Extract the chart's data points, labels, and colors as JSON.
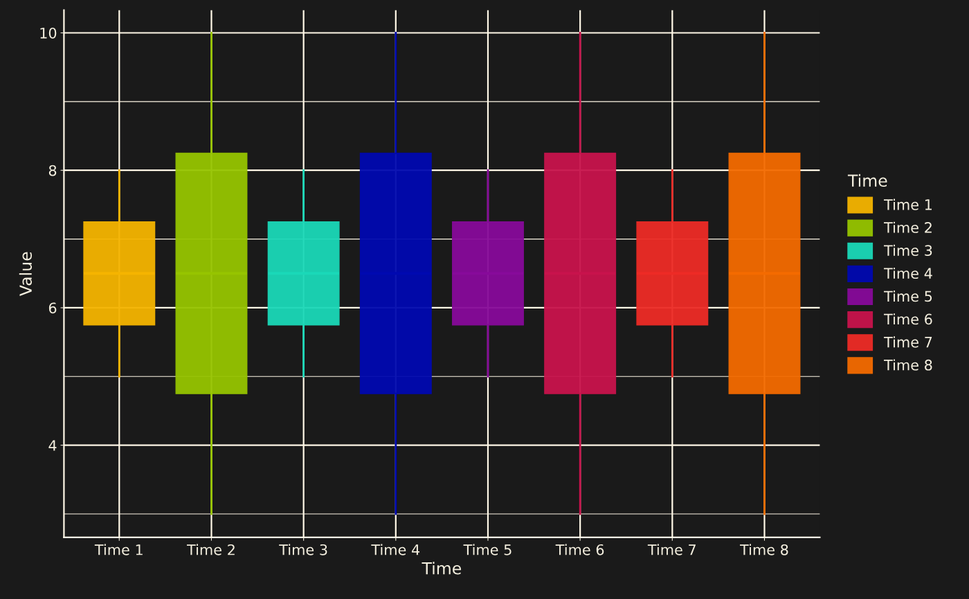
{
  "chart_data": {
    "type": "box",
    "xlabel": "Time",
    "ylabel": "Value",
    "legend_title": "Time",
    "legend": "right",
    "grid": true,
    "categories": [
      "Time 1",
      "Time 2",
      "Time 3",
      "Time 4",
      "Time 5",
      "Time 6",
      "Time 7",
      "Time 8"
    ],
    "series": [
      {
        "name": "Time 1",
        "color": "#f5b400",
        "x": [
          "Time 1"
        ],
        "boxes": [
          {
            "low": 5,
            "q1": 5.75,
            "median": 6.5,
            "q3": 7.25,
            "high": 8
          }
        ]
      },
      {
        "name": "Time 2",
        "color": "#96c400",
        "x": [
          "Time 2"
        ],
        "boxes": [
          {
            "low": 3,
            "q1": 4.75,
            "median": 6.5,
            "q3": 8.25,
            "high": 10
          }
        ]
      },
      {
        "name": "Time 3",
        "color": "#1ad8b8",
        "x": [
          "Time 3"
        ],
        "boxes": [
          {
            "low": 5,
            "q1": 5.75,
            "median": 6.5,
            "q3": 7.25,
            "high": 8
          }
        ]
      },
      {
        "name": "Time 4",
        "color": "#0009b0",
        "x": [
          "Time 4"
        ],
        "boxes": [
          {
            "low": 3,
            "q1": 4.75,
            "median": 6.5,
            "q3": 8.25,
            "high": 10
          }
        ]
      },
      {
        "name": "Time 5",
        "color": "#870a9a",
        "x": [
          "Time 5"
        ],
        "boxes": [
          {
            "low": 5,
            "q1": 5.75,
            "median": 6.5,
            "q3": 7.25,
            "high": 8
          }
        ]
      },
      {
        "name": "Time 6",
        "color": "#c8134c",
        "x": [
          "Time 6"
        ],
        "boxes": [
          {
            "low": 3,
            "q1": 4.75,
            "median": 6.5,
            "q3": 8.25,
            "high": 10
          }
        ]
      },
      {
        "name": "Time 7",
        "color": "#ed2b26",
        "x": [
          "Time 7"
        ],
        "boxes": [
          {
            "low": 5,
            "q1": 5.75,
            "median": 6.5,
            "q3": 7.25,
            "high": 8
          }
        ]
      },
      {
        "name": "Time 8",
        "color": "#f46b00",
        "x": [
          "Time 8"
        ],
        "boxes": [
          {
            "low": 3,
            "q1": 4.75,
            "median": 6.5,
            "q3": 8.25,
            "high": 10
          }
        ]
      }
    ],
    "ylim": [
      2.66,
      10.33
    ],
    "yticks": [
      4,
      6,
      8,
      10
    ]
  }
}
